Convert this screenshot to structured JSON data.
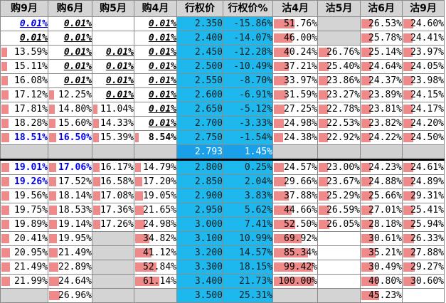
{
  "headers": [
    "购9月",
    "购6月",
    "购5月",
    "购4月",
    "行权价",
    "行权价%",
    "沽4月",
    "沽5月",
    "沽6月",
    "沽9月"
  ],
  "strike_col_index": 4,
  "colors": {
    "strike": "#1db8ee",
    "bar": "#ee8a8a",
    "gray": "#d4d4d4",
    "atm_blue_text": "#0000ee"
  },
  "rows": [
    {
      "cells": [
        {
          "v": "0.01%",
          "fmt": "iu",
          "blue": true
        },
        {
          "v": "0.01%",
          "fmt": "iu"
        },
        {
          "v": ""
        },
        {
          "v": "0.01%",
          "fmt": "iu"
        },
        {
          "v": "2.350"
        },
        {
          "v": "-15.86%"
        },
        {
          "v": "51.76%",
          "bar": 0.52
        },
        {
          "v": "",
          "gray": true
        },
        {
          "v": "26.53%",
          "bar": 0.27
        },
        {
          "v": "24.60%",
          "bar": 0.25
        }
      ]
    },
    {
      "cells": [
        {
          "v": "0.01%",
          "fmt": "iu"
        },
        {
          "v": "0.01%",
          "fmt": "iu"
        },
        {
          "v": ""
        },
        {
          "v": "0.01%",
          "fmt": "iu"
        },
        {
          "v": "2.400"
        },
        {
          "v": "-14.07%"
        },
        {
          "v": "46.00%",
          "bar": 0.46
        },
        {
          "v": "",
          "gray": true
        },
        {
          "v": "25.78%",
          "bar": 0.26
        },
        {
          "v": "24.41%",
          "bar": 0.24
        }
      ]
    },
    {
      "cells": [
        {
          "v": "13.59%",
          "bar": 0.14
        },
        {
          "v": "0.01%",
          "fmt": "iu"
        },
        {
          "v": "0.01%",
          "fmt": "iu"
        },
        {
          "v": "0.01%",
          "fmt": "iu"
        },
        {
          "v": "2.450"
        },
        {
          "v": "-12.28%"
        },
        {
          "v": "40.24%",
          "bar": 0.4
        },
        {
          "v": "26.76%",
          "bar": 0.27
        },
        {
          "v": "25.14%",
          "bar": 0.25
        },
        {
          "v": "23.97%",
          "bar": 0.24
        }
      ]
    },
    {
      "cells": [
        {
          "v": "15.11%",
          "bar": 0.15
        },
        {
          "v": "0.01%",
          "fmt": "iu"
        },
        {
          "v": "0.01%",
          "fmt": "iu"
        },
        {
          "v": "0.01%",
          "fmt": "iu"
        },
        {
          "v": "2.500"
        },
        {
          "v": "-10.49%"
        },
        {
          "v": "37.21%",
          "bar": 0.37
        },
        {
          "v": "25.40%",
          "bar": 0.25
        },
        {
          "v": "24.64%",
          "bar": 0.25
        },
        {
          "v": "24.05%",
          "bar": 0.24
        }
      ]
    },
    {
      "cells": [
        {
          "v": "16.08%",
          "bar": 0.16
        },
        {
          "v": "0.01%",
          "fmt": "iu"
        },
        {
          "v": "0.01%",
          "fmt": "iu"
        },
        {
          "v": "0.01%",
          "fmt": "iu"
        },
        {
          "v": "2.550"
        },
        {
          "v": "-8.70%"
        },
        {
          "v": "33.97%",
          "bar": 0.34
        },
        {
          "v": "23.86%",
          "bar": 0.24
        },
        {
          "v": "24.37%",
          "bar": 0.24
        },
        {
          "v": "23.98%",
          "bar": 0.24
        }
      ]
    },
    {
      "cells": [
        {
          "v": "17.12%",
          "bar": 0.17
        },
        {
          "v": "12.25%",
          "bar": 0.12
        },
        {
          "v": "0.01%",
          "fmt": "iu"
        },
        {
          "v": "0.01%",
          "fmt": "iu"
        },
        {
          "v": "2.600"
        },
        {
          "v": "-6.91%"
        },
        {
          "v": "31.59%",
          "bar": 0.32
        },
        {
          "v": "23.27%",
          "bar": 0.23
        },
        {
          "v": "23.89%",
          "bar": 0.24
        },
        {
          "v": "24.15%",
          "bar": 0.24
        }
      ]
    },
    {
      "cells": [
        {
          "v": "17.81%",
          "bar": 0.18
        },
        {
          "v": "14.80%",
          "bar": 0.15
        },
        {
          "v": "11.04%",
          "bar": 0.11
        },
        {
          "v": "0.01%",
          "fmt": "iu"
        },
        {
          "v": "2.650"
        },
        {
          "v": "-5.12%"
        },
        {
          "v": "27.25%",
          "bar": 0.27
        },
        {
          "v": "22.78%",
          "bar": 0.23
        },
        {
          "v": "23.81%",
          "bar": 0.24
        },
        {
          "v": "24.17%",
          "bar": 0.24
        }
      ]
    },
    {
      "cells": [
        {
          "v": "18.28%",
          "bar": 0.18
        },
        {
          "v": "15.60%",
          "bar": 0.16
        },
        {
          "v": "14.33%",
          "bar": 0.14
        },
        {
          "v": "0.01%",
          "fmt": "iu"
        },
        {
          "v": "2.700"
        },
        {
          "v": "-3.33%"
        },
        {
          "v": "24.98%",
          "bar": 0.25
        },
        {
          "v": "22.53%",
          "bar": 0.23
        },
        {
          "v": "23.82%",
          "bar": 0.24
        },
        {
          "v": "24.20%",
          "bar": 0.24
        }
      ]
    },
    {
      "cells": [
        {
          "v": "18.51%",
          "bar": 0.19,
          "fmt": "b",
          "blue": true
        },
        {
          "v": "16.50%",
          "bar": 0.17,
          "fmt": "b",
          "blue": true
        },
        {
          "v": "15.39%",
          "bar": 0.15
        },
        {
          "v": "8.54%",
          "bar": 0.09,
          "fmt": "b"
        },
        {
          "v": "2.750"
        },
        {
          "v": "-1.54%"
        },
        {
          "v": "24.38%",
          "bar": 0.24
        },
        {
          "v": "22.92%",
          "bar": 0.23
        },
        {
          "v": "24.22%",
          "bar": 0.24
        },
        {
          "v": "24.50%",
          "bar": 0.25
        }
      ]
    },
    {
      "sep": true,
      "cells": [
        {
          "v": ""
        },
        {
          "v": ""
        },
        {
          "v": ""
        },
        {
          "v": ""
        },
        {
          "v": "2.793"
        },
        {
          "v": "1.45%"
        },
        {
          "v": ""
        },
        {
          "v": ""
        },
        {
          "v": ""
        },
        {
          "v": ""
        }
      ]
    },
    {
      "cells": [
        {
          "v": "19.01%",
          "bar": 0.19,
          "fmt": "b",
          "blue": true
        },
        {
          "v": "17.06%",
          "bar": 0.17,
          "fmt": "b",
          "blue": true
        },
        {
          "v": "16.17%",
          "bar": 0.16
        },
        {
          "v": "14.79%",
          "bar": 0.15
        },
        {
          "v": "2.800"
        },
        {
          "v": "0.25%"
        },
        {
          "v": "24.57%",
          "bar": 0.25
        },
        {
          "v": "23.00%",
          "bar": 0.23
        },
        {
          "v": "24.23%",
          "bar": 0.24
        },
        {
          "v": "24.61%",
          "bar": 0.25
        }
      ]
    },
    {
      "cells": [
        {
          "v": "19.26%",
          "bar": 0.19,
          "fmt": "b",
          "blue": true
        },
        {
          "v": "17.52%",
          "bar": 0.18
        },
        {
          "v": "16.58%",
          "bar": 0.17
        },
        {
          "v": "17.20%",
          "bar": 0.17
        },
        {
          "v": "2.850"
        },
        {
          "v": "2.04%"
        },
        {
          "v": "29.66%",
          "bar": 0.3
        },
        {
          "v": "23.67%",
          "bar": 0.24
        },
        {
          "v": "24.88%",
          "bar": 0.25
        },
        {
          "v": "24.89%",
          "bar": 0.25
        }
      ]
    },
    {
      "cells": [
        {
          "v": "19.56%",
          "bar": 0.2
        },
        {
          "v": "18.14%",
          "bar": 0.18
        },
        {
          "v": "17.08%",
          "bar": 0.17
        },
        {
          "v": "19.05%",
          "bar": 0.19
        },
        {
          "v": "2.900"
        },
        {
          "v": "3.83%"
        },
        {
          "v": "37.88%",
          "bar": 0.38
        },
        {
          "v": "25.29%",
          "bar": 0.25
        },
        {
          "v": "25.66%",
          "bar": 0.26
        },
        {
          "v": "29.31%",
          "bar": 0.29
        }
      ]
    },
    {
      "cells": [
        {
          "v": "19.75%",
          "bar": 0.2
        },
        {
          "v": "18.53%",
          "bar": 0.19
        },
        {
          "v": "17.36%",
          "bar": 0.17
        },
        {
          "v": "21.65%",
          "bar": 0.22
        },
        {
          "v": "2.950"
        },
        {
          "v": "5.62%"
        },
        {
          "v": "44.66%",
          "bar": 0.45
        },
        {
          "v": "26.59%",
          "bar": 0.27
        },
        {
          "v": "27.01%",
          "bar": 0.27
        },
        {
          "v": "25.41%",
          "bar": 0.25
        }
      ]
    },
    {
      "cells": [
        {
          "v": "19.89%",
          "bar": 0.2
        },
        {
          "v": "19.14%",
          "bar": 0.19
        },
        {
          "v": "17.26%",
          "bar": 0.17
        },
        {
          "v": "24.98%",
          "bar": 0.25
        },
        {
          "v": "3.000"
        },
        {
          "v": "7.41%"
        },
        {
          "v": "52.50%",
          "bar": 0.53
        },
        {
          "v": "26.05%",
          "bar": 0.26
        },
        {
          "v": "28.18%",
          "bar": 0.28
        },
        {
          "v": "25.94%",
          "bar": 0.26
        }
      ]
    },
    {
      "cells": [
        {
          "v": "20.41%",
          "bar": 0.2
        },
        {
          "v": "19.95%",
          "bar": 0.2
        },
        {
          "v": "",
          "gray": true
        },
        {
          "v": "34.82%",
          "bar": 0.35
        },
        {
          "v": "3.100"
        },
        {
          "v": "10.99%"
        },
        {
          "v": "69.92%",
          "bar": 0.7
        },
        {
          "v": ""
        },
        {
          "v": "30.61%",
          "bar": 0.31
        },
        {
          "v": "26.33%",
          "bar": 0.26
        }
      ]
    },
    {
      "cells": [
        {
          "v": "20.95%",
          "bar": 0.21
        },
        {
          "v": "21.49%",
          "bar": 0.21
        },
        {
          "v": "",
          "gray": true
        },
        {
          "v": "41.12%",
          "bar": 0.41
        },
        {
          "v": "3.200"
        },
        {
          "v": "14.57%"
        },
        {
          "v": "85.34%",
          "bar": 0.85
        },
        {
          "v": ""
        },
        {
          "v": "35.21%",
          "bar": 0.35
        },
        {
          "v": "27.88%",
          "bar": 0.28
        }
      ]
    },
    {
      "cells": [
        {
          "v": "21.49%",
          "bar": 0.21
        },
        {
          "v": "22.89%",
          "bar": 0.23
        },
        {
          "v": "",
          "gray": true
        },
        {
          "v": "52.84%",
          "bar": 0.53
        },
        {
          "v": "3.300"
        },
        {
          "v": "18.15%"
        },
        {
          "v": "99.42%",
          "bar": 0.99
        },
        {
          "v": ""
        },
        {
          "v": "30.49%",
          "bar": 0.3
        },
        {
          "v": "29.27%",
          "bar": 0.29
        }
      ]
    },
    {
      "cells": [
        {
          "v": "21.99%",
          "bar": 0.22
        },
        {
          "v": "24.64%",
          "bar": 0.25
        },
        {
          "v": "",
          "gray": true
        },
        {
          "v": "61.14%",
          "bar": 0.61
        },
        {
          "v": "3.400"
        },
        {
          "v": "21.73%"
        },
        {
          "v": "100.00%",
          "bar": 1.0
        },
        {
          "v": ""
        },
        {
          "v": "40.80%",
          "bar": 0.41
        },
        {
          "v": "30.60%",
          "bar": 0.31
        }
      ]
    },
    {
      "cells": [
        {
          "v": "",
          "gray": true
        },
        {
          "v": "26.96%",
          "bar": 0.27
        },
        {
          "v": "",
          "gray": true
        },
        {
          "v": "",
          "gray": true
        },
        {
          "v": "3.500"
        },
        {
          "v": "25.31%"
        },
        {
          "v": "",
          "gray": true
        },
        {
          "v": "",
          "gray": true
        },
        {
          "v": "45.23%",
          "bar": 0.45
        },
        {
          "v": ""
        }
      ]
    }
  ]
}
